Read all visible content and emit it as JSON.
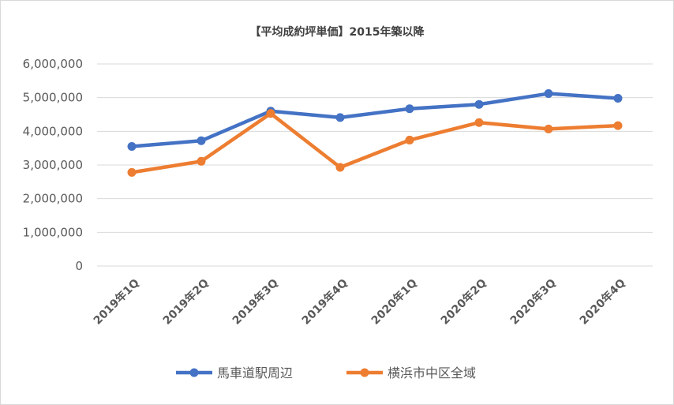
{
  "chart_data": {
    "type": "line",
    "title": "【平均成約坪単価】2015年築以降",
    "xlabel": "",
    "ylabel": "",
    "categories": [
      "2019年1Q",
      "2019年2Q",
      "2019年3Q",
      "2019年4Q",
      "2020年1Q",
      "2020年2Q",
      "2020年3Q",
      "2020年4Q"
    ],
    "ylim": [
      0,
      6000000
    ],
    "yticks": [
      "0",
      "1,000,000",
      "2,000,000",
      "3,000,000",
      "4,000,000",
      "5,000,000",
      "6,000,000"
    ],
    "grid": true,
    "legend_position": "bottom",
    "series": [
      {
        "name": "馬車道駅周辺",
        "color": "#4472c4",
        "values": [
          3550000,
          3720000,
          4600000,
          4410000,
          4670000,
          4800000,
          5120000,
          4980000
        ]
      },
      {
        "name": "横浜市中区全域",
        "color": "#ed7d31",
        "values": [
          2780000,
          3110000,
          4530000,
          2930000,
          3740000,
          4260000,
          4070000,
          4170000
        ]
      }
    ]
  }
}
